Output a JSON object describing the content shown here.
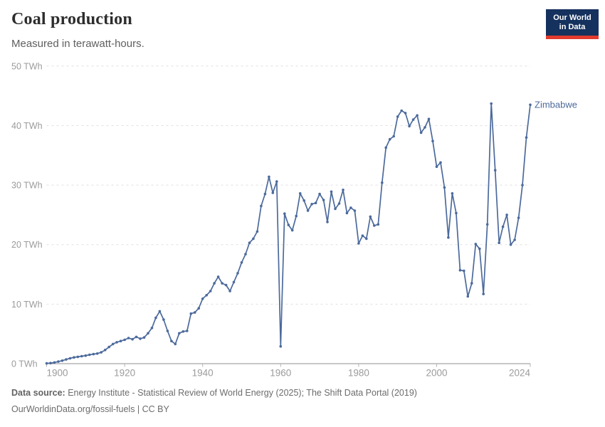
{
  "header": {
    "title": "Coal production",
    "subtitle": "Measured in terawatt-hours."
  },
  "logo": {
    "line1": "Our World",
    "line2": "in Data",
    "bg_color": "#15315d",
    "bar_color": "#e23b2e"
  },
  "chart_data": {
    "type": "line",
    "title": "Coal production",
    "unit": "TWh",
    "entity": "Zimbabwe",
    "line_color": "#4C6A9C",
    "grid": "horizontal-dashed",
    "legend_position": "end-of-line-label",
    "xlim": [
      1900,
      2024
    ],
    "ylim": [
      0,
      50
    ],
    "x_ticks": [
      1900,
      1920,
      1940,
      1960,
      1980,
      2000,
      2024
    ],
    "y_ticks": [
      0,
      10,
      20,
      30,
      40,
      50
    ],
    "y_tick_suffix": " TWh",
    "x": [
      1900,
      1901,
      1902,
      1903,
      1904,
      1905,
      1906,
      1907,
      1908,
      1909,
      1910,
      1911,
      1912,
      1913,
      1914,
      1915,
      1916,
      1917,
      1918,
      1919,
      1920,
      1921,
      1922,
      1923,
      1924,
      1925,
      1926,
      1927,
      1928,
      1929,
      1930,
      1931,
      1932,
      1933,
      1934,
      1935,
      1936,
      1937,
      1938,
      1939,
      1940,
      1941,
      1942,
      1943,
      1944,
      1945,
      1946,
      1947,
      1948,
      1949,
      1950,
      1951,
      1952,
      1953,
      1954,
      1955,
      1956,
      1957,
      1958,
      1959,
      1960,
      1961,
      1962,
      1963,
      1964,
      1965,
      1966,
      1967,
      1968,
      1969,
      1970,
      1971,
      1972,
      1973,
      1974,
      1975,
      1976,
      1977,
      1978,
      1979,
      1980,
      1981,
      1982,
      1983,
      1984,
      1985,
      1986,
      1987,
      1988,
      1989,
      1990,
      1991,
      1992,
      1993,
      1994,
      1995,
      1996,
      1997,
      1998,
      1999,
      2000,
      2001,
      2002,
      2003,
      2004,
      2005,
      2006,
      2007,
      2008,
      2009,
      2010,
      2011,
      2012,
      2013,
      2014,
      2015,
      2016,
      2017,
      2018,
      2019,
      2020,
      2021,
      2022,
      2023,
      2024
    ],
    "values": [
      0.05,
      0.1,
      0.2,
      0.35,
      0.5,
      0.7,
      0.9,
      1.05,
      1.15,
      1.25,
      1.35,
      1.5,
      1.6,
      1.7,
      1.9,
      2.3,
      2.8,
      3.3,
      3.6,
      3.8,
      4.0,
      4.3,
      4.1,
      4.5,
      4.2,
      4.4,
      5.1,
      6.0,
      7.7,
      8.8,
      7.4,
      5.5,
      3.8,
      3.3,
      5.1,
      5.4,
      5.5,
      8.4,
      8.6,
      9.3,
      10.9,
      11.5,
      12.2,
      13.5,
      14.6,
      13.5,
      13.2,
      12.2,
      13.7,
      15.2,
      17.0,
      18.4,
      20.3,
      21.0,
      22.2,
      26.5,
      28.5,
      31.4,
      28.7,
      30.6,
      2.9,
      25.2,
      23.3,
      22.4,
      24.8,
      28.6,
      27.4,
      25.7,
      26.8,
      27.0,
      28.5,
      27.5,
      23.8,
      28.9,
      26.0,
      26.9,
      29.2,
      25.3,
      26.2,
      25.7,
      20.2,
      21.5,
      21.0,
      24.7,
      23.2,
      23.4,
      30.4,
      36.3,
      37.7,
      38.2,
      41.5,
      42.5,
      42.1,
      39.9,
      41.0,
      41.7,
      38.8,
      39.7,
      41.1,
      37.4,
      33.1,
      33.8,
      29.6,
      21.2,
      28.6,
      25.3,
      15.7,
      15.6,
      11.3,
      13.5,
      20.1,
      19.3,
      11.7,
      23.4,
      43.7,
      32.5,
      20.3,
      23.0,
      25.0,
      20.0,
      20.8,
      24.5,
      30.0,
      38.0,
      43.5
    ]
  },
  "footer": {
    "source_label": "Data source:",
    "source_text": " Energy Institute - Statistical Review of World Energy (2025); The Shift Data Portal (2019)",
    "note": "OurWorldinData.org/fossil-fuels | CC BY"
  }
}
